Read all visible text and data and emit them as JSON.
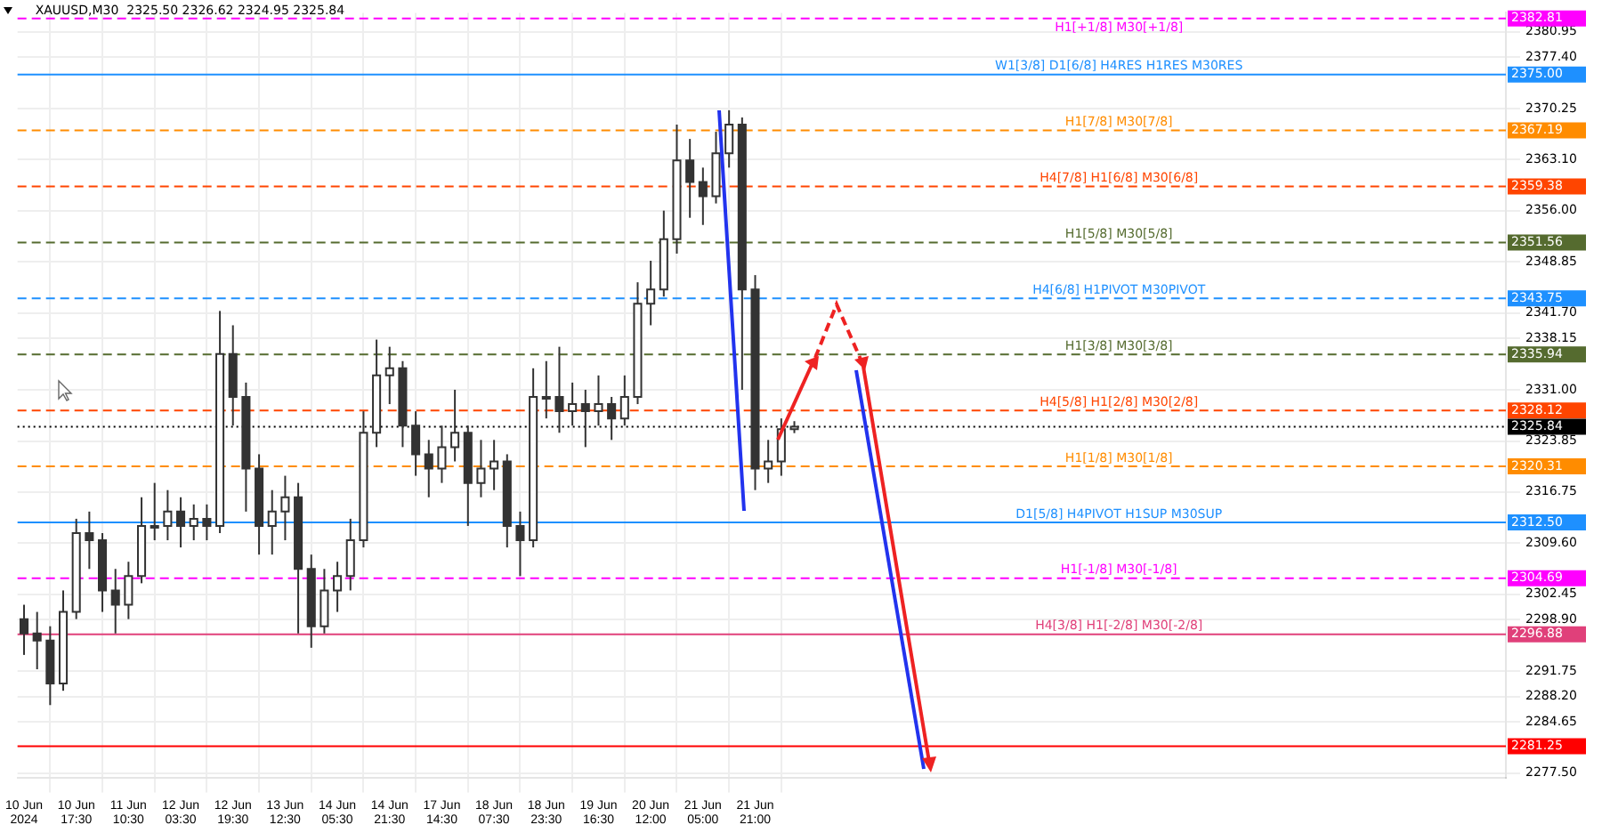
{
  "chart_data": {
    "type": "candlestick",
    "annotations": [
      "XAUUSD,M30  2325.50 2326.62 2324.95 2325.84",
      "2382.81",
      "2375.00",
      "2367.19",
      "2359.38",
      "2351.56",
      "2343.75",
      "2335.94",
      "2328.12",
      "2325.84",
      "2320.31",
      "2312.50",
      "2304.69",
      "2296.88",
      "2281.25"
    ],
    "categories": [
      "10 Jun 2024",
      null,
      null,
      null,
      "10 Jun 17:30",
      null,
      null,
      null,
      "11 Jun 10:30",
      null,
      null,
      null,
      "12 Jun 03:30",
      null,
      null,
      null,
      "12 Jun 19:30",
      null,
      null,
      null,
      "13 Jun 12:30",
      null,
      null,
      null,
      "14 Jun 05:30",
      null,
      null,
      null,
      "14 Jun 21:30",
      null,
      null,
      null,
      "17 Jun 14:30",
      null,
      null,
      null,
      "18 Jun 07:30",
      null,
      null,
      null,
      "18 Jun 23:30",
      null,
      null,
      null,
      "19 Jun 16:30",
      null,
      null,
      null,
      "20 Jun 12:00",
      null,
      null,
      null,
      "21 Jun 05:00",
      null,
      null,
      null,
      "21 Jun 21:00",
      null,
      null,
      null,
      null,
      null,
      null,
      null,
      null,
      null,
      null,
      null,
      null,
      null,
      null,
      null,
      null,
      null,
      null,
      null,
      null,
      null,
      null,
      null,
      null,
      null,
      null,
      null,
      null,
      null,
      null,
      null,
      null,
      null,
      null,
      null,
      null,
      null,
      null,
      null,
      null,
      null,
      null,
      null,
      null,
      null,
      null,
      null,
      null,
      null,
      null,
      null,
      null,
      null,
      null,
      null,
      null,
      null
    ],
    "ohlc": [
      [
        2299,
        2301,
        2294,
        2297
      ],
      [
        2297,
        2300,
        2292,
        2296
      ],
      [
        2296,
        2298,
        2287,
        2290
      ],
      [
        2290,
        2303,
        2289,
        2300
      ],
      [
        2300,
        2313,
        2299,
        2311
      ],
      [
        2311,
        2314,
        2306,
        2310
      ],
      [
        2310,
        2311,
        2300,
        2303
      ],
      [
        2303,
        2306,
        2297,
        2301
      ],
      [
        2301,
        2307,
        2299,
        2305
      ],
      [
        2305,
        2316,
        2304,
        2312
      ],
      [
        2312,
        2318,
        2310,
        2312
      ],
      [
        2312,
        2317,
        2310,
        2314
      ],
      [
        2314,
        2316,
        2309,
        2312
      ],
      [
        2312,
        2315,
        2310,
        2313
      ],
      [
        2313,
        2315,
        2310,
        2312
      ],
      [
        2312,
        2342,
        2311,
        2336
      ],
      [
        2336,
        2340,
        2326,
        2330
      ],
      [
        2330,
        2332,
        2314,
        2320
      ],
      [
        2320,
        2322,
        2308,
        2312
      ],
      [
        2312,
        2317,
        2308,
        2314
      ],
      [
        2314,
        2319,
        2310,
        2316
      ],
      [
        2316,
        2318,
        2297,
        2306
      ],
      [
        2306,
        2308,
        2295,
        2298
      ],
      [
        2298,
        2306,
        2297,
        2303
      ],
      [
        2303,
        2307,
        2300,
        2305
      ],
      [
        2305,
        2313,
        2303,
        2310
      ],
      [
        2310,
        2328,
        2309,
        2325
      ],
      [
        2325,
        2338,
        2323,
        2333
      ],
      [
        2333,
        2337,
        2329,
        2334
      ],
      [
        2334,
        2335,
        2323,
        2326
      ],
      [
        2326,
        2328,
        2319,
        2322
      ],
      [
        2322,
        2324,
        2316,
        2320
      ],
      [
        2320,
        2326,
        2318,
        2323
      ],
      [
        2323,
        2331,
        2321,
        2325
      ],
      [
        2325,
        2326,
        2312,
        2318
      ],
      [
        2318,
        2324,
        2316,
        2320
      ],
      [
        2320,
        2324,
        2317,
        2321
      ],
      [
        2321,
        2322,
        2309,
        2312
      ],
      [
        2312,
        2314,
        2305,
        2310
      ],
      [
        2310,
        2334,
        2309,
        2330
      ],
      [
        2330,
        2335,
        2327,
        2330
      ],
      [
        2330,
        2337,
        2325,
        2328
      ],
      [
        2328,
        2332,
        2326,
        2329
      ],
      [
        2329,
        2331,
        2323,
        2328
      ],
      [
        2328,
        2333,
        2326,
        2329
      ],
      [
        2329,
        2330,
        2324,
        2327
      ],
      [
        2327,
        2333,
        2326,
        2330
      ],
      [
        2330,
        2346,
        2329,
        2343
      ],
      [
        2343,
        2349,
        2340,
        2345
      ],
      [
        2345,
        2356,
        2344,
        2352
      ],
      [
        2352,
        2368,
        2350,
        2363
      ],
      [
        2363,
        2366,
        2355,
        2360
      ],
      [
        2360,
        2362,
        2354,
        2358
      ],
      [
        2358,
        2367,
        2357,
        2364
      ],
      [
        2364,
        2370,
        2362,
        2368
      ],
      [
        2368,
        2369,
        2331,
        2345
      ],
      [
        2345,
        2347,
        2317,
        2320
      ],
      [
        2320,
        2324,
        2318,
        2321
      ],
      [
        2321,
        2327,
        2319,
        2325.5
      ],
      [
        2325.5,
        2326.62,
        2324.95,
        2325.84
      ],
      null,
      null,
      null,
      null,
      null,
      null,
      null,
      null,
      null,
      null,
      null,
      null,
      null,
      null,
      null,
      null,
      null,
      null,
      null,
      null,
      null,
      null,
      null,
      null,
      null,
      null,
      null,
      null,
      null,
      null,
      null,
      null,
      null,
      null,
      null,
      null,
      null,
      null,
      null,
      null,
      null,
      null,
      null,
      null,
      null,
      null,
      null,
      null,
      null,
      null,
      null,
      null,
      null,
      null
    ],
    "ylim": [
      2276.8,
      2383.6
    ],
    "yticks": [
      {
        "value": 2380.95,
        "label": "2380.95"
      },
      {
        "value": 2377.4,
        "label": "2377.40"
      },
      {
        "value": 2370.25,
        "label": "2370.25"
      },
      {
        "value": 2363.1,
        "label": "2363.10"
      },
      {
        "value": 2356,
        "label": "2356.00"
      },
      {
        "value": 2348.85,
        "label": "2348.85"
      },
      {
        "value": 2341.7,
        "label": "2341.70"
      },
      {
        "value": 2338.15,
        "label": "2338.15"
      },
      {
        "value": 2331,
        "label": "2331.00"
      },
      {
        "value": 2323.85,
        "label": "2323.85"
      },
      {
        "value": 2316.75,
        "label": "2316.75"
      },
      {
        "value": 2309.6,
        "label": "2309.60"
      },
      {
        "value": 2302.45,
        "label": "2302.45"
      },
      {
        "value": 2298.9,
        "label": "2298.90"
      },
      {
        "value": 2291.75,
        "label": "2291.75"
      },
      {
        "value": 2288.2,
        "label": "2288.20"
      },
      {
        "value": 2284.65,
        "label": "2284.65"
      },
      {
        "value": 2277.5,
        "label": "2277.50"
      }
    ],
    "grid": true,
    "ref_lines": [
      {
        "axis": "y",
        "value": 2382.81,
        "label": "H1[+1/8] M30[+1/8]",
        "color": "#ff00ff",
        "line_style": "dashed"
      },
      {
        "axis": "y",
        "value": 2375,
        "label": "W1[3/8] D1[6/8] H4RES H1RES M30RES",
        "color": "#1e90ff",
        "line_style": "solid"
      },
      {
        "axis": "y",
        "value": 2367.19,
        "label": "H1[7/8] M30[7/8]",
        "color": "#ff8c00",
        "line_style": "dashed"
      },
      {
        "axis": "y",
        "value": 2359.38,
        "label": "H4[7/8] H1[6/8] M30[6/8]",
        "color": "#ff4500",
        "line_style": "dashed"
      },
      {
        "axis": "y",
        "value": 2351.56,
        "label": "H1[5/8] M30[5/8]",
        "color": "#556b2f",
        "line_style": "dashed"
      },
      {
        "axis": "y",
        "value": 2343.75,
        "label": "H4[6/8] H1PIVOT M30PIVOT",
        "color": "#1e90ff",
        "line_style": "dashed"
      },
      {
        "axis": "y",
        "value": 2335.94,
        "label": "H1[3/8] M30[3/8]",
        "color": "#556b2f",
        "line_style": "dashed"
      },
      {
        "axis": "y",
        "value": 2328.12,
        "label": "H4[5/8] H1[2/8] M30[2/8]",
        "color": "#ff4500",
        "line_style": "dashed"
      },
      {
        "axis": "y",
        "value": 2325.84,
        "color": "#000000",
        "line_style": "dotted"
      },
      {
        "axis": "y",
        "value": 2320.31,
        "label": "H1[1/8] M30[1/8]",
        "color": "#ff8c00",
        "line_style": "dashed"
      },
      {
        "axis": "y",
        "value": 2312.5,
        "label": "D1[5/8] H4PIVOT H1SUP M30SUP",
        "color": "#1e90ff",
        "line_style": "solid"
      },
      {
        "axis": "y",
        "value": 2304.69,
        "label": "H1[-1/8] M30[-1/8]",
        "color": "#ff00ff",
        "line_style": "dashed"
      },
      {
        "axis": "y",
        "value": 2296.88,
        "label": "H4[3/8] H1[-2/8] M30[-2/8]",
        "color": "#e0407a",
        "line_style": "solid"
      },
      {
        "axis": "y",
        "value": 2281.25,
        "color": "#ff0000",
        "line_style": "solid"
      }
    ]
  }
}
